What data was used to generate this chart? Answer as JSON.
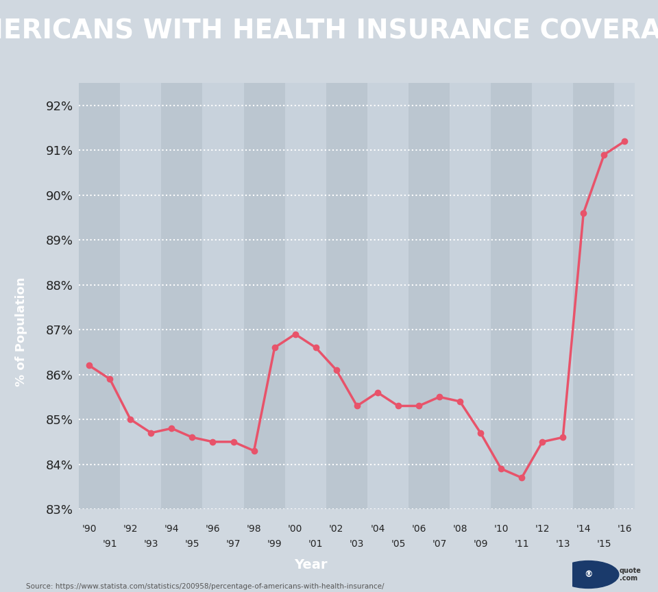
{
  "title": "AMERICANS WITH HEALTH INSURANCE COVERAGE",
  "title_bg_color": "#1a3a6b",
  "title_text_color": "#ffffff",
  "ylabel": "% of Population",
  "xlabel": "Year",
  "xlabel_bg_color": "#1a3a6b",
  "xlabel_text_color": "#ffffff",
  "background_color": "#d0d8e0",
  "plot_bg_color": "#c8d2dc",
  "stripe_dark": "#bbc6d0",
  "stripe_light": "#c8d2dc",
  "source_text": "Source: https://www.statista.com/statistics/200958/percentage-of-americans-with-health-insurance/",
  "years": [
    1990,
    1991,
    1992,
    1993,
    1994,
    1995,
    1996,
    1997,
    1998,
    1999,
    2000,
    2001,
    2002,
    2003,
    2004,
    2005,
    2006,
    2007,
    2008,
    2009,
    2010,
    2011,
    2012,
    2013,
    2014,
    2015,
    2016
  ],
  "values": [
    86.2,
    85.9,
    85.0,
    84.7,
    84.8,
    84.6,
    84.5,
    84.5,
    84.3,
    86.6,
    86.9,
    86.6,
    86.1,
    85.3,
    85.6,
    85.3,
    85.3,
    85.5,
    85.4,
    84.7,
    83.9,
    83.7,
    84.5,
    84.6,
    89.6,
    90.9,
    91.2
  ],
  "line_color": "#e8536a",
  "marker_color": "#e8536a",
  "ylim_min": 83.0,
  "ylim_max": 92.5,
  "yticks": [
    83,
    84,
    85,
    86,
    87,
    88,
    89,
    90,
    91,
    92
  ],
  "grid_color": "#ffffff",
  "ylabel_bg_color": "#1a3a6b",
  "ylabel_text_color": "#ffffff"
}
